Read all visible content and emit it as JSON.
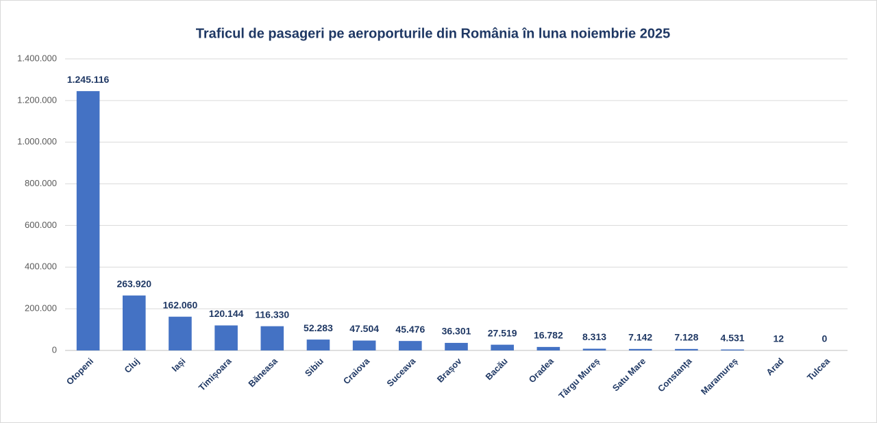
{
  "chart_data": {
    "type": "bar",
    "title": "Traficul de pasageri pe aeroporturile din România în luna noiembrie 2025",
    "categories": [
      "Otopeni",
      "Cluj",
      "Iași",
      "Timișoara",
      "Băneasa",
      "Sibiu",
      "Craiova",
      "Suceava",
      "Brașov",
      "Bacău",
      "Oradea",
      "Târgu Mureș",
      "Satu Mare",
      "Constanța",
      "Maramureș",
      "Arad",
      "Tulcea"
    ],
    "values": [
      1245116,
      263920,
      162060,
      120144,
      116330,
      52283,
      47504,
      45476,
      36301,
      27519,
      16782,
      8313,
      7142,
      7128,
      4531,
      12,
      0
    ],
    "value_labels": [
      "1.245.116",
      "263.920",
      "162.060",
      "120.144",
      "116.330",
      "52.283",
      "47.504",
      "45.476",
      "36.301",
      "27.519",
      "16.782",
      "8.313",
      "7.142",
      "7.128",
      "4.531",
      "12",
      "0"
    ],
    "color": "#4472c4",
    "ylim": [
      0,
      1400000
    ],
    "yticks": [
      0,
      {
        "value": 200000,
        "label": "200.000"
      },
      {
        "value": 400000,
        "label": "400.000"
      },
      {
        "value": 600000,
        "label": "600.000"
      },
      {
        "value": 800000,
        "label": "800.000"
      },
      {
        "value": 1000000,
        "label": "1.000.000"
      },
      {
        "value": 1200000,
        "label": "1.200.000"
      },
      {
        "value": 1400000,
        "label": "1.400.000"
      }
    ],
    "grid": true
  }
}
